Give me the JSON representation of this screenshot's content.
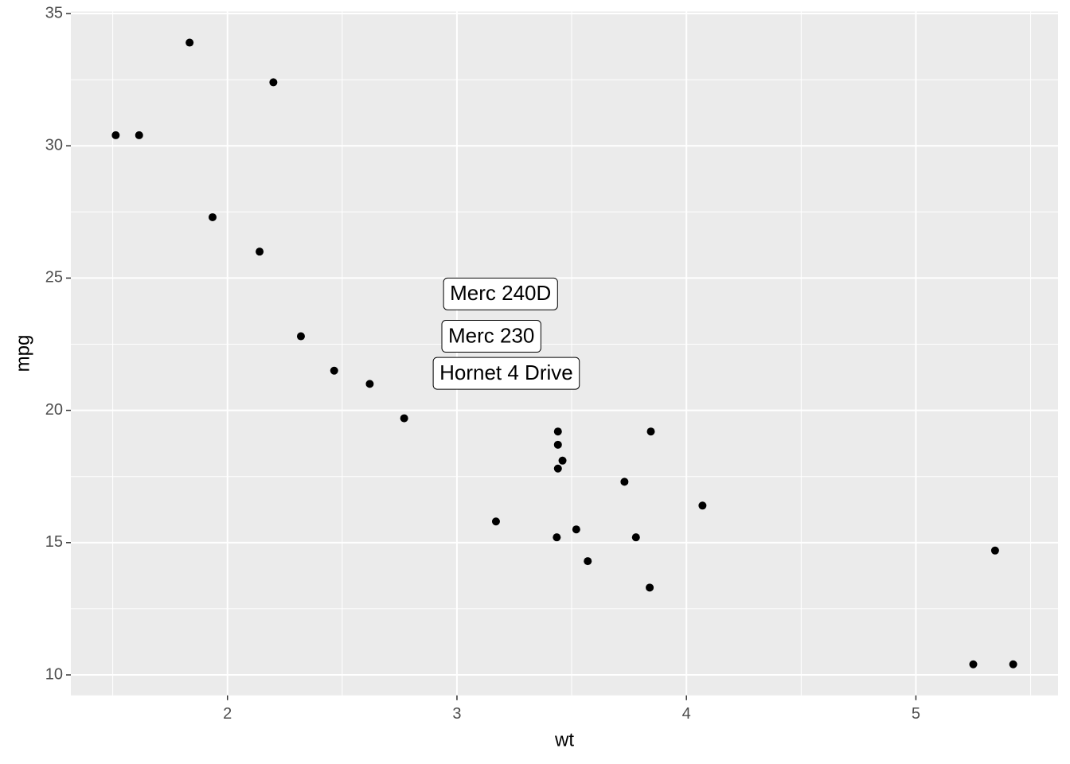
{
  "chart_data": {
    "type": "scatter",
    "x_label": "wt",
    "y_label": "mpg",
    "x": [
      1.513,
      1.615,
      1.835,
      1.935,
      2.14,
      2.2,
      2.32,
      2.465,
      2.62,
      2.77,
      3.17,
      3.435,
      3.44,
      3.44,
      3.44,
      3.46,
      3.52,
      3.57,
      3.73,
      3.78,
      3.84,
      3.845,
      4.07,
      5.25,
      5.345,
      5.424
    ],
    "values": [
      30.4,
      30.4,
      33.9,
      27.3,
      26.0,
      32.4,
      22.8,
      21.5,
      21.0,
      19.7,
      15.8,
      15.2,
      18.7,
      19.2,
      17.8,
      18.1,
      15.5,
      14.3,
      17.3,
      15.2,
      13.3,
      19.2,
      16.4,
      10.4,
      14.7,
      10.4
    ],
    "color": "#000000",
    "labels": [
      {
        "text": "Merc 240D",
        "x": 3.19,
        "y": 24.4
      },
      {
        "text": "Merc 230",
        "x": 3.15,
        "y": 22.8
      },
      {
        "text": "Hornet 4 Drive",
        "x": 3.215,
        "y": 21.4
      }
    ],
    "xlim": [
      1.3175,
      5.6195
    ],
    "ylim": [
      9.225,
      35.075
    ],
    "xticks": [
      2,
      3,
      4,
      5
    ],
    "yticks": [
      10,
      15,
      20,
      25,
      30,
      35
    ],
    "x_minor_ticks": [
      1.5,
      2.5,
      3.5,
      4.5,
      5.5
    ],
    "y_minor_ticks": [
      12.5,
      17.5,
      22.5,
      27.5,
      32.5
    ],
    "grid": true
  }
}
